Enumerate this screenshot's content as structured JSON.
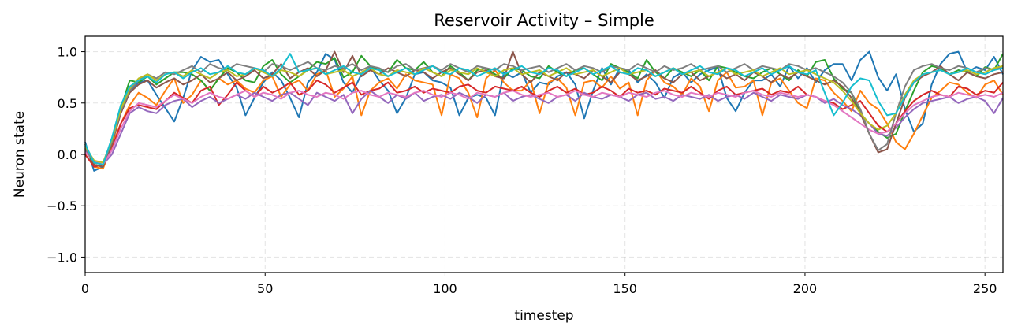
{
  "chart_data": {
    "type": "line",
    "title": "Reservoir Activity – Simple",
    "xlabel": "timestep",
    "ylabel": "Neuron state",
    "xlim": [
      0,
      255
    ],
    "ylim": [
      -1.15,
      1.15
    ],
    "xticks": [
      0,
      50,
      100,
      150,
      200,
      250
    ],
    "xtick_labels": [
      "0",
      "50",
      "100",
      "150",
      "200",
      "250"
    ],
    "yticks": [
      -1.0,
      -0.5,
      0.0,
      0.5,
      1.0
    ],
    "ytick_labels": [
      "−1.0",
      "−0.5",
      "0.0",
      "0.5",
      "1.0"
    ],
    "grid": true,
    "legend": "none",
    "series": [
      {
        "color": "#1f77b4",
        "values": [
          0.12,
          -0.16,
          -0.12,
          0.15,
          0.45,
          0.62,
          0.7,
          0.72,
          0.58,
          0.45,
          0.32,
          0.55,
          0.82,
          0.95,
          0.9,
          0.92,
          0.78,
          0.65,
          0.38,
          0.55,
          0.7,
          0.8,
          0.72,
          0.55,
          0.36,
          0.7,
          0.8,
          0.98,
          0.92,
          0.7,
          0.6,
          0.78,
          0.85,
          0.72,
          0.62,
          0.4,
          0.55,
          0.78,
          0.8,
          0.72,
          0.7,
          0.65,
          0.38,
          0.55,
          0.58,
          0.55,
          0.38,
          0.8,
          0.75,
          0.8,
          0.6,
          0.7,
          0.68,
          0.76,
          0.8,
          0.68,
          0.35,
          0.62,
          0.84,
          0.68,
          0.84,
          0.82,
          0.7,
          0.78,
          0.7,
          0.55,
          0.75,
          0.8,
          0.7,
          0.78,
          0.82,
          0.85,
          0.55,
          0.42,
          0.6,
          0.72,
          0.72,
          0.78,
          0.66,
          0.86,
          0.74,
          0.84,
          0.7,
          0.82,
          0.88,
          0.88,
          0.72,
          0.92,
          1.0,
          0.75,
          0.62,
          0.78,
          0.44,
          0.22,
          0.3,
          0.68,
          0.88,
          0.98,
          1.0,
          0.8,
          0.85,
          0.82,
          0.95,
          0.78
        ]
      },
      {
        "color": "#ff7f0e",
        "values": [
          0.1,
          -0.12,
          -0.14,
          0.08,
          0.3,
          0.48,
          0.6,
          0.55,
          0.48,
          0.62,
          0.74,
          0.5,
          0.58,
          0.72,
          0.62,
          0.74,
          0.68,
          0.72,
          0.64,
          0.6,
          0.72,
          0.76,
          0.56,
          0.68,
          0.72,
          0.62,
          0.78,
          0.82,
          0.56,
          0.64,
          0.76,
          0.38,
          0.62,
          0.7,
          0.74,
          0.64,
          0.78,
          0.72,
          0.7,
          0.68,
          0.38,
          0.78,
          0.74,
          0.6,
          0.36,
          0.74,
          0.82,
          0.7,
          0.62,
          0.62,
          0.72,
          0.4,
          0.7,
          0.74,
          0.65,
          0.38,
          0.7,
          0.72,
          0.65,
          0.76,
          0.64,
          0.7,
          0.38,
          0.72,
          0.82,
          0.7,
          0.66,
          0.58,
          0.74,
          0.66,
          0.42,
          0.72,
          0.8,
          0.65,
          0.66,
          0.72,
          0.38,
          0.7,
          0.74,
          0.62,
          0.5,
          0.45,
          0.74,
          0.72,
          0.6,
          0.52,
          0.42,
          0.62,
          0.5,
          0.44,
          0.3,
          0.12,
          0.05,
          0.2,
          0.38,
          0.55,
          0.62,
          0.7,
          0.68,
          0.6,
          0.55,
          0.68,
          0.72,
          0.58
        ]
      },
      {
        "color": "#2ca02c",
        "values": [
          0.05,
          -0.1,
          -0.12,
          0.1,
          0.45,
          0.72,
          0.7,
          0.76,
          0.68,
          0.74,
          0.8,
          0.8,
          0.78,
          0.72,
          0.62,
          0.74,
          0.84,
          0.8,
          0.72,
          0.7,
          0.86,
          0.92,
          0.78,
          0.7,
          0.76,
          0.82,
          0.9,
          0.88,
          0.94,
          0.75,
          0.8,
          0.96,
          0.86,
          0.82,
          0.8,
          0.92,
          0.84,
          0.82,
          0.9,
          0.8,
          0.76,
          0.86,
          0.8,
          0.72,
          0.82,
          0.84,
          0.78,
          0.74,
          0.84,
          0.82,
          0.76,
          0.74,
          0.86,
          0.8,
          0.76,
          0.82,
          0.84,
          0.78,
          0.72,
          0.88,
          0.84,
          0.8,
          0.74,
          0.92,
          0.8,
          0.74,
          0.84,
          0.8,
          0.76,
          0.82,
          0.72,
          0.86,
          0.84,
          0.8,
          0.76,
          0.74,
          0.8,
          0.84,
          0.78,
          0.72,
          0.82,
          0.76,
          0.9,
          0.92,
          0.74,
          0.64,
          0.6,
          0.4,
          0.3,
          0.22,
          0.16,
          0.2,
          0.42,
          0.62,
          0.8,
          0.86,
          0.84,
          0.78,
          0.82,
          0.8,
          0.76,
          0.85,
          0.82,
          0.98
        ]
      },
      {
        "color": "#d62728",
        "values": [
          0.0,
          -0.12,
          -0.1,
          0.05,
          0.3,
          0.45,
          0.48,
          0.46,
          0.44,
          0.52,
          0.6,
          0.55,
          0.5,
          0.62,
          0.66,
          0.48,
          0.58,
          0.7,
          0.62,
          0.56,
          0.66,
          0.6,
          0.64,
          0.7,
          0.58,
          0.62,
          0.72,
          0.68,
          0.6,
          0.65,
          0.7,
          0.58,
          0.62,
          0.64,
          0.7,
          0.6,
          0.62,
          0.66,
          0.6,
          0.64,
          0.62,
          0.6,
          0.66,
          0.68,
          0.62,
          0.6,
          0.66,
          0.64,
          0.62,
          0.66,
          0.6,
          0.56,
          0.62,
          0.66,
          0.6,
          0.64,
          0.58,
          0.6,
          0.66,
          0.62,
          0.56,
          0.64,
          0.6,
          0.62,
          0.58,
          0.64,
          0.62,
          0.6,
          0.66,
          0.6,
          0.54,
          0.62,
          0.66,
          0.58,
          0.6,
          0.62,
          0.64,
          0.58,
          0.62,
          0.6,
          0.66,
          0.58,
          0.56,
          0.52,
          0.5,
          0.44,
          0.48,
          0.52,
          0.4,
          0.28,
          0.22,
          0.3,
          0.42,
          0.52,
          0.58,
          0.62,
          0.58,
          0.56,
          0.66,
          0.64,
          0.58,
          0.62,
          0.6,
          0.7
        ]
      },
      {
        "color": "#9467bd",
        "values": [
          0.05,
          -0.08,
          -0.1,
          0.0,
          0.2,
          0.4,
          0.46,
          0.42,
          0.4,
          0.48,
          0.52,
          0.54,
          0.46,
          0.52,
          0.56,
          0.5,
          0.54,
          0.58,
          0.54,
          0.6,
          0.56,
          0.52,
          0.58,
          0.6,
          0.54,
          0.48,
          0.6,
          0.56,
          0.52,
          0.58,
          0.4,
          0.54,
          0.62,
          0.56,
          0.5,
          0.58,
          0.54,
          0.6,
          0.52,
          0.56,
          0.58,
          0.54,
          0.6,
          0.56,
          0.5,
          0.58,
          0.56,
          0.6,
          0.52,
          0.56,
          0.58,
          0.54,
          0.5,
          0.56,
          0.58,
          0.52,
          0.6,
          0.56,
          0.54,
          0.58,
          0.56,
          0.52,
          0.58,
          0.6,
          0.54,
          0.56,
          0.52,
          0.58,
          0.56,
          0.54,
          0.58,
          0.52,
          0.56,
          0.58,
          0.54,
          0.6,
          0.56,
          0.52,
          0.58,
          0.56,
          0.54,
          0.58,
          0.56,
          0.5,
          0.54,
          0.48,
          0.44,
          0.38,
          0.3,
          0.2,
          0.18,
          0.26,
          0.36,
          0.44,
          0.5,
          0.52,
          0.54,
          0.56,
          0.5,
          0.54,
          0.56,
          0.52,
          0.4,
          0.55
        ]
      },
      {
        "color": "#8c564b",
        "values": [
          0.08,
          -0.1,
          -0.12,
          0.1,
          0.4,
          0.6,
          0.68,
          0.72,
          0.65,
          0.7,
          0.74,
          0.68,
          0.72,
          0.78,
          0.7,
          0.74,
          0.8,
          0.72,
          0.76,
          0.82,
          0.74,
          0.78,
          0.88,
          0.74,
          0.8,
          0.84,
          0.76,
          0.82,
          1.0,
          0.8,
          0.96,
          0.76,
          0.82,
          0.78,
          0.84,
          0.8,
          0.76,
          0.82,
          0.8,
          0.74,
          0.8,
          0.84,
          0.78,
          0.72,
          0.8,
          0.82,
          0.76,
          0.74,
          1.0,
          0.78,
          0.7,
          0.8,
          0.76,
          0.72,
          0.8,
          0.78,
          0.74,
          0.82,
          0.76,
          0.7,
          0.8,
          0.78,
          0.72,
          0.76,
          0.82,
          0.74,
          0.7,
          0.78,
          0.8,
          0.72,
          0.76,
          0.8,
          0.74,
          0.78,
          0.72,
          0.8,
          0.76,
          0.7,
          0.78,
          0.74,
          0.8,
          0.76,
          0.72,
          0.68,
          0.72,
          0.66,
          0.55,
          0.4,
          0.2,
          0.02,
          0.05,
          0.3,
          0.55,
          0.7,
          0.76,
          0.8,
          0.86,
          0.78,
          0.72,
          0.8,
          0.76,
          0.74,
          0.78,
          0.8
        ]
      },
      {
        "color": "#e377c2",
        "values": [
          0.02,
          -0.06,
          -0.1,
          0.04,
          0.25,
          0.42,
          0.5,
          0.48,
          0.46,
          0.52,
          0.58,
          0.54,
          0.5,
          0.56,
          0.6,
          0.56,
          0.54,
          0.58,
          0.62,
          0.56,
          0.6,
          0.58,
          0.54,
          0.6,
          0.62,
          0.58,
          0.56,
          0.6,
          0.58,
          0.54,
          0.6,
          0.62,
          0.58,
          0.56,
          0.6,
          0.58,
          0.56,
          0.6,
          0.62,
          0.58,
          0.56,
          0.6,
          0.58,
          0.54,
          0.6,
          0.58,
          0.56,
          0.6,
          0.62,
          0.58,
          0.56,
          0.58,
          0.6,
          0.56,
          0.58,
          0.62,
          0.58,
          0.56,
          0.6,
          0.58,
          0.56,
          0.6,
          0.58,
          0.56,
          0.6,
          0.62,
          0.58,
          0.56,
          0.6,
          0.58,
          0.56,
          0.6,
          0.58,
          0.56,
          0.6,
          0.62,
          0.58,
          0.56,
          0.6,
          0.58,
          0.56,
          0.58,
          0.56,
          0.52,
          0.48,
          0.42,
          0.36,
          0.3,
          0.24,
          0.2,
          0.22,
          0.3,
          0.4,
          0.48,
          0.52,
          0.56,
          0.58,
          0.56,
          0.6,
          0.58,
          0.56,
          0.58,
          0.56,
          0.6
        ]
      },
      {
        "color": "#7f7f7f",
        "values": [
          0.06,
          -0.08,
          -0.1,
          0.12,
          0.42,
          0.62,
          0.72,
          0.78,
          0.74,
          0.8,
          0.78,
          0.82,
          0.86,
          0.8,
          0.88,
          0.84,
          0.82,
          0.88,
          0.86,
          0.84,
          0.8,
          0.88,
          0.86,
          0.82,
          0.86,
          0.9,
          0.84,
          0.82,
          0.86,
          0.84,
          0.88,
          0.82,
          0.86,
          0.84,
          0.8,
          0.86,
          0.88,
          0.82,
          0.84,
          0.86,
          0.82,
          0.88,
          0.84,
          0.8,
          0.86,
          0.84,
          0.82,
          0.88,
          0.86,
          0.82,
          0.84,
          0.86,
          0.8,
          0.84,
          0.88,
          0.82,
          0.86,
          0.84,
          0.8,
          0.86,
          0.84,
          0.82,
          0.88,
          0.84,
          0.8,
          0.86,
          0.82,
          0.84,
          0.88,
          0.82,
          0.84,
          0.86,
          0.8,
          0.84,
          0.88,
          0.82,
          0.86,
          0.84,
          0.82,
          0.88,
          0.86,
          0.82,
          0.84,
          0.8,
          0.76,
          0.7,
          0.6,
          0.44,
          0.2,
          0.04,
          0.1,
          0.4,
          0.66,
          0.82,
          0.86,
          0.88,
          0.84,
          0.82,
          0.86,
          0.84,
          0.8,
          0.84,
          0.82,
          0.86
        ]
      },
      {
        "color": "#bcbd22",
        "values": [
          0.08,
          -0.06,
          -0.08,
          0.14,
          0.44,
          0.64,
          0.74,
          0.78,
          0.72,
          0.78,
          0.8,
          0.76,
          0.82,
          0.78,
          0.74,
          0.8,
          0.82,
          0.76,
          0.78,
          0.84,
          0.8,
          0.76,
          0.82,
          0.8,
          0.76,
          0.82,
          0.84,
          0.78,
          0.8,
          0.82,
          0.76,
          0.8,
          0.84,
          0.78,
          0.76,
          0.82,
          0.8,
          0.78,
          0.84,
          0.8,
          0.76,
          0.82,
          0.8,
          0.78,
          0.84,
          0.8,
          0.76,
          0.82,
          0.84,
          0.78,
          0.8,
          0.82,
          0.76,
          0.8,
          0.84,
          0.78,
          0.8,
          0.82,
          0.76,
          0.8,
          0.84,
          0.78,
          0.8,
          0.82,
          0.76,
          0.8,
          0.84,
          0.78,
          0.8,
          0.82,
          0.76,
          0.8,
          0.84,
          0.78,
          0.8,
          0.82,
          0.76,
          0.8,
          0.84,
          0.78,
          0.8,
          0.82,
          0.78,
          0.74,
          0.7,
          0.62,
          0.52,
          0.4,
          0.3,
          0.24,
          0.28,
          0.4,
          0.58,
          0.72,
          0.78,
          0.8,
          0.82,
          0.78,
          0.8,
          0.82,
          0.78,
          0.8,
          0.84,
          0.86
        ]
      },
      {
        "color": "#17becf",
        "values": [
          0.1,
          -0.08,
          -0.1,
          0.16,
          0.48,
          0.66,
          0.72,
          0.76,
          0.7,
          0.78,
          0.8,
          0.74,
          0.8,
          0.84,
          0.78,
          0.8,
          0.86,
          0.8,
          0.78,
          0.84,
          0.82,
          0.76,
          0.84,
          0.98,
          0.8,
          0.82,
          0.84,
          0.78,
          0.82,
          0.86,
          0.8,
          0.78,
          0.84,
          0.82,
          0.76,
          0.8,
          0.84,
          0.78,
          0.82,
          0.86,
          0.8,
          0.78,
          0.84,
          0.82,
          0.76,
          0.8,
          0.84,
          0.78,
          0.82,
          0.86,
          0.8,
          0.78,
          0.84,
          0.82,
          0.76,
          0.8,
          0.84,
          0.78,
          0.82,
          0.86,
          0.8,
          0.78,
          0.84,
          0.82,
          0.76,
          0.8,
          0.84,
          0.78,
          0.82,
          0.86,
          0.8,
          0.78,
          0.84,
          0.82,
          0.76,
          0.8,
          0.84,
          0.78,
          0.82,
          0.86,
          0.8,
          0.78,
          0.82,
          0.6,
          0.38,
          0.5,
          0.66,
          0.74,
          0.72,
          0.52,
          0.38,
          0.4,
          0.56,
          0.7,
          0.78,
          0.8,
          0.82,
          0.78,
          0.8,
          0.84,
          0.8,
          0.78,
          0.82,
          0.84
        ]
      }
    ]
  }
}
